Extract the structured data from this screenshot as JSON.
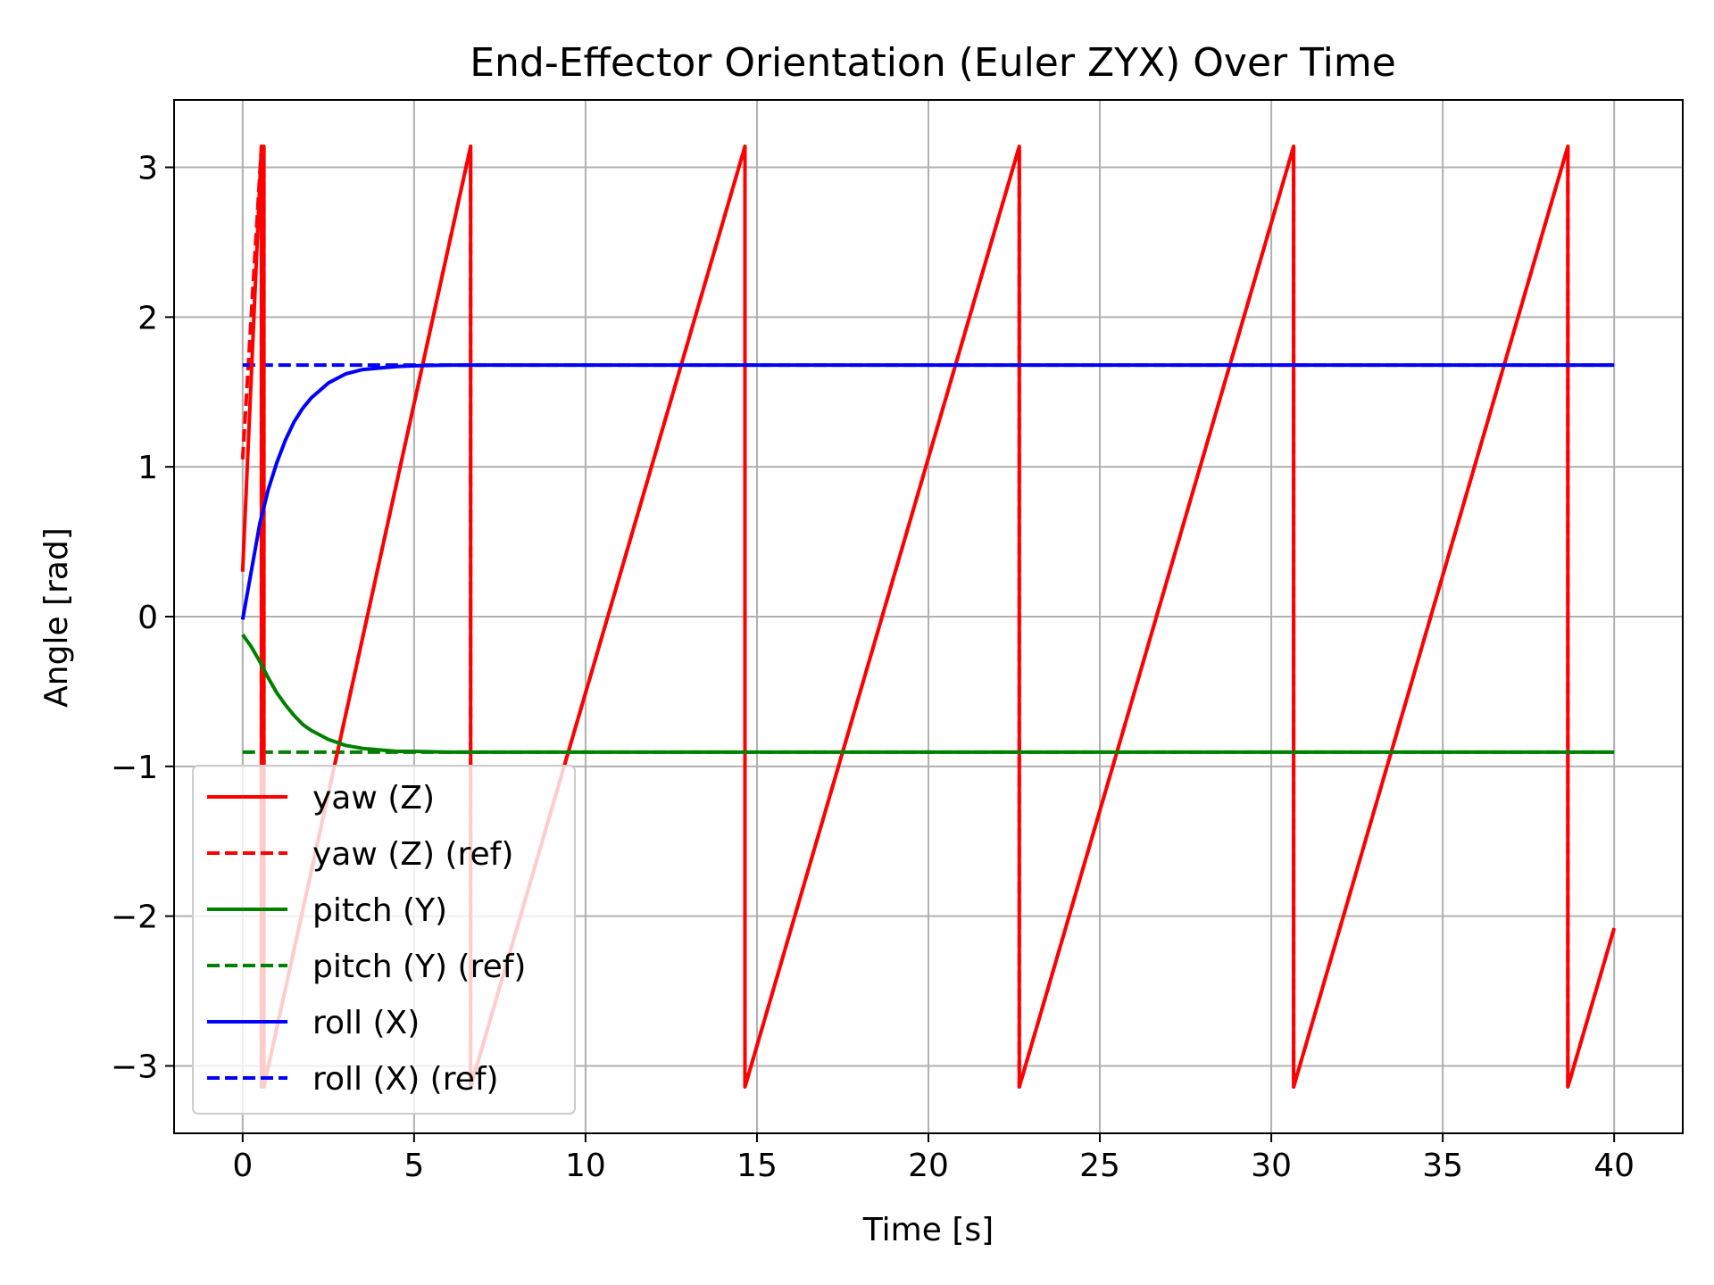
{
  "chart_data": {
    "type": "line",
    "title": "End-Effector Orientation (Euler ZYX) Over Time",
    "xlabel": "Time [s]",
    "ylabel": "Angle [rad]",
    "xlim": [
      -2,
      42
    ],
    "ylim": [
      -3.45,
      3.45
    ],
    "xticks": [
      0,
      5,
      10,
      15,
      20,
      25,
      30,
      35,
      40
    ],
    "xtick_labels": [
      "0",
      "5",
      "10",
      "15",
      "20",
      "25",
      "30",
      "35",
      "40"
    ],
    "yticks": [
      -3,
      -2,
      -1,
      0,
      1,
      2,
      3
    ],
    "ytick_labels": [
      "−3",
      "−2",
      "−1",
      "0",
      "1",
      "2",
      "3"
    ],
    "grid": true,
    "legend_position": "lower-left",
    "series": [
      {
        "name": "yaw (Z)",
        "color": "#ff0000",
        "dashed": false,
        "x": [
          0,
          0.55,
          0.55,
          0.62,
          0.62,
          6.65,
          6.65,
          14.65,
          14.65,
          22.65,
          22.65,
          30.65,
          30.65,
          38.65,
          38.65,
          40
        ],
        "y": [
          0.3,
          3.14,
          -3.14,
          3.14,
          -3.14,
          3.14,
          -3.14,
          3.14,
          -3.14,
          3.14,
          -3.14,
          3.14,
          -3.14,
          3.14,
          -3.14,
          -2.08
        ]
      },
      {
        "name": "yaw (Z) (ref)",
        "color": "#ff0000",
        "dashed": true,
        "x": [
          0,
          0.55,
          0.55,
          0.62,
          0.62,
          6.65,
          6.65,
          14.65,
          14.65,
          22.65,
          22.65,
          30.65,
          30.65,
          38.65,
          38.65,
          40
        ],
        "y": [
          1.05,
          3.14,
          -3.14,
          3.14,
          -3.14,
          3.14,
          -3.14,
          3.14,
          -3.14,
          3.14,
          -3.14,
          3.14,
          -3.14,
          3.14,
          -3.14,
          -2.08
        ]
      },
      {
        "name": "pitch (Y)",
        "color": "#008000",
        "dashed": false,
        "x": [
          0,
          0.25,
          0.5,
          0.75,
          1,
          1.25,
          1.5,
          1.75,
          2,
          2.5,
          3,
          3.5,
          4,
          4.5,
          5,
          6,
          8,
          10,
          15,
          20,
          25,
          30,
          35,
          40
        ],
        "y": [
          -0.12,
          -0.2,
          -0.3,
          -0.41,
          -0.51,
          -0.59,
          -0.66,
          -0.72,
          -0.76,
          -0.82,
          -0.86,
          -0.88,
          -0.89,
          -0.9,
          -0.9,
          -0.905,
          -0.905,
          -0.905,
          -0.905,
          -0.905,
          -0.905,
          -0.905,
          -0.905,
          -0.905
        ]
      },
      {
        "name": "pitch (Y) (ref)",
        "color": "#008000",
        "dashed": true,
        "x": [
          0,
          40
        ],
        "y": [
          -0.905,
          -0.905
        ]
      },
      {
        "name": "roll (X)",
        "color": "#0000ff",
        "dashed": false,
        "x": [
          0,
          0.25,
          0.5,
          0.75,
          1,
          1.25,
          1.5,
          1.75,
          2,
          2.5,
          3,
          3.5,
          4,
          4.5,
          5,
          6,
          8,
          10,
          15,
          20,
          25,
          30,
          35,
          40
        ],
        "y": [
          -0.02,
          0.3,
          0.62,
          0.85,
          1.03,
          1.18,
          1.3,
          1.39,
          1.46,
          1.56,
          1.62,
          1.65,
          1.66,
          1.67,
          1.675,
          1.68,
          1.68,
          1.68,
          1.68,
          1.68,
          1.68,
          1.68,
          1.68,
          1.68
        ]
      },
      {
        "name": "roll (X) (ref)",
        "color": "#0000ff",
        "dashed": true,
        "x": [
          0,
          40
        ],
        "y": [
          1.68,
          1.68
        ]
      }
    ]
  }
}
